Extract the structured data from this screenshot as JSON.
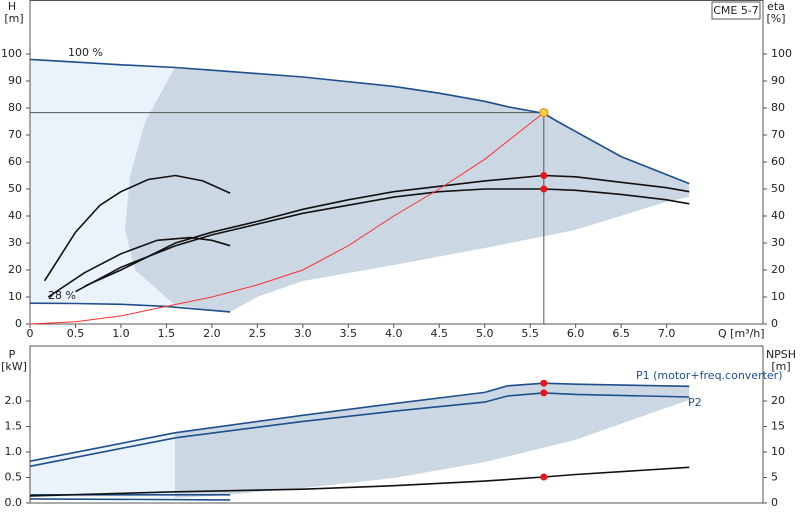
{
  "chart_data": [
    {
      "type": "line",
      "box_label": "CME 5-7",
      "y_label": "H",
      "y_unit": "[m]",
      "y2_label": "eta",
      "y2_unit": "[%]",
      "x_label": "Q [m³/h]",
      "annotations": [
        "100 %",
        "28 %"
      ],
      "xlim": [
        0,
        8.06
      ],
      "ylim": [
        0,
        120
      ],
      "y2lim": [
        0,
        120
      ],
      "xticks": [
        0,
        0.5,
        {
          "value": 1,
          "label": "1.0"
        },
        1.5,
        {
          "value": 2,
          "label": "2.0"
        },
        2.5,
        {
          "value": 3,
          "label": "3.0"
        },
        3.5,
        {
          "value": 4,
          "label": "4.0"
        },
        4.5,
        {
          "value": 5,
          "label": "5.0"
        },
        5.5,
        {
          "value": 6,
          "label": "6.0"
        },
        6.5,
        {
          "value": 7,
          "label": "7.0"
        }
      ],
      "yticks": [
        0,
        10,
        20,
        30,
        40,
        50,
        60,
        70,
        80,
        90,
        100
      ],
      "y2ticks": [
        0,
        10,
        20,
        30,
        40,
        50,
        60,
        70,
        80,
        90,
        100
      ],
      "series": [
        {
          "color": "#1f4e8c",
          "x": [
            0,
            0.5,
            1,
            1.6,
            2,
            3,
            4,
            4.5,
            5,
            5.25,
            5.65,
            5.8,
            6.5,
            7.25
          ],
          "values": [
            98,
            97,
            96,
            95,
            94,
            91.5,
            88,
            85.5,
            82.5,
            80.5,
            78,
            75,
            62,
            52
          ]
        },
        {
          "color": "#1f4e8c",
          "x": [
            0,
            0.5,
            1,
            1.5,
            2.2
          ],
          "values": [
            7.7,
            7.6,
            7.3,
            6.5,
            4.5
          ]
        },
        {
          "color": "#111111",
          "axis": "y2",
          "x": [
            0.6,
            1,
            1.6,
            2,
            2.5,
            3,
            3.5,
            4,
            4.5,
            5,
            5.65,
            6,
            6.5,
            7,
            7.25
          ],
          "values": [
            14,
            20,
            30,
            34,
            38,
            42.5,
            46,
            49,
            51,
            53,
            55,
            54.5,
            52.5,
            50.5,
            49
          ]
        },
        {
          "color": "#111111",
          "axis": "y2",
          "x": [
            0.5,
            1,
            1.6,
            2,
            2.5,
            3,
            3.5,
            4,
            4.5,
            5,
            5.65,
            6,
            6.5,
            7,
            7.25
          ],
          "values": [
            12,
            21,
            29,
            33,
            37,
            41,
            44,
            47,
            49,
            50,
            50,
            49.5,
            48,
            46,
            44.5
          ]
        },
        {
          "color": "#111111",
          "axis": "y2",
          "x": [
            0.16,
            0.5,
            0.77,
            1,
            1.3,
            1.6,
            1.9,
            2.2
          ],
          "values": [
            16,
            34,
            44,
            49,
            53.5,
            55,
            53,
            48.5
          ]
        },
        {
          "color": "#111111",
          "axis": "y2",
          "x": [
            0.2,
            0.6,
            1,
            1.4,
            1.76,
            2,
            2.2
          ],
          "values": [
            10,
            19,
            26,
            31,
            32,
            31,
            29
          ]
        },
        {
          "color": "#ff3030",
          "x": [
            0,
            0.5,
            1,
            1.5,
            2,
            2.5,
            3,
            3.5,
            4,
            4.5,
            5,
            5.65
          ],
          "values": [
            0,
            0.8,
            3,
            6.5,
            10,
            14.5,
            20,
            29,
            40,
            50,
            61,
            78.3
          ]
        }
      ],
      "markers": [
        {
          "x": 5.65,
          "value": 55,
          "axis": "y2"
        },
        {
          "x": 5.65,
          "value": 50,
          "axis": "y2"
        }
      ],
      "duty_point": {
        "x": 5.65,
        "value": 78.3
      }
    },
    {
      "type": "line",
      "y_label": "P",
      "y_unit": "[kW]",
      "y2_label": "NPSH",
      "y2_unit": "[m]",
      "xlim": [
        0,
        8.06
      ],
      "ylim": [
        0,
        3.08
      ],
      "y2lim": [
        0,
        30.8
      ],
      "yticks": [
        {
          "value": 0,
          "label": "0.0"
        },
        0.5,
        {
          "value": 1,
          "label": "1.0"
        },
        1.5,
        {
          "value": 2,
          "label": "2.0"
        }
      ],
      "y2ticks": [
        0,
        5,
        10,
        15,
        20
      ],
      "series": [
        {
          "name": "P1 (motor+freq.converter)",
          "color": "#1f4e8c",
          "x": [
            0,
            1.6,
            3,
            4,
            5,
            5.25,
            5.65,
            6,
            7.25
          ],
          "values": [
            0.82,
            1.38,
            1.72,
            1.95,
            2.17,
            2.3,
            2.35,
            2.33,
            2.29
          ]
        },
        {
          "name": "P2",
          "color": "#1f4e8c",
          "x": [
            0,
            1.6,
            3,
            4,
            5,
            5.25,
            5.65,
            6,
            7.25
          ],
          "values": [
            0.72,
            1.28,
            1.6,
            1.8,
            1.98,
            2.1,
            2.16,
            2.13,
            2.08
          ]
        },
        {
          "color": "#1f4e8c",
          "x": [
            0,
            2.2
          ],
          "values": [
            0.16,
            0.16
          ]
        },
        {
          "color": "#1f4e8c",
          "x": [
            0,
            2.2
          ],
          "values": [
            0.08,
            0.06
          ]
        },
        {
          "color": "#111111",
          "axis": "y2",
          "x": [
            0,
            1.6,
            3,
            4,
            5,
            5.65,
            6,
            7.25
          ],
          "values": [
            1.4,
            2.2,
            2.7,
            3.4,
            4.3,
            5.1,
            5.6,
            7.0
          ]
        }
      ],
      "markers": [
        {
          "x": 5.65,
          "value": 2.35
        },
        {
          "x": 5.65,
          "value": 2.16
        },
        {
          "x": 5.65,
          "value": 5.1,
          "axis": "y2"
        }
      ]
    }
  ]
}
